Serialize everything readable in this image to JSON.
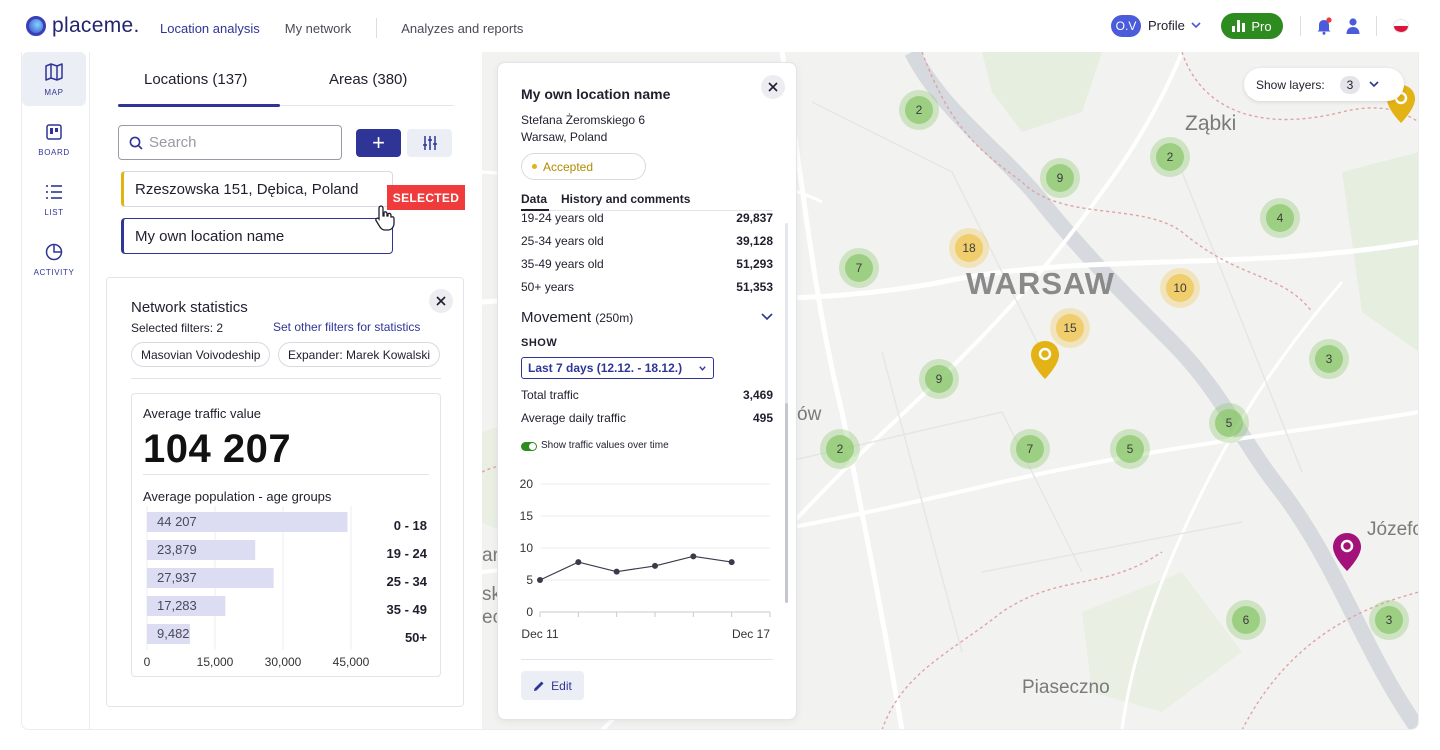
{
  "app": {
    "logo_text": "placeme.",
    "nav": [
      {
        "label": "Location analysis",
        "active": true
      },
      {
        "label": "My network",
        "active": false
      },
      {
        "label": "Analyzes and reports",
        "active": false
      }
    ],
    "profile": {
      "initials": "O.V",
      "label": "Profile"
    },
    "pro_label": "Pro",
    "colors": {
      "brand": "#2f3597",
      "pro": "#2e8b1f",
      "selected": "#ef3b3b",
      "accent_yellow": "#e3b214"
    }
  },
  "rail": {
    "items": [
      {
        "icon": "map-icon",
        "label": "MAP",
        "active": true
      },
      {
        "icon": "board-icon",
        "label": "BOARD",
        "active": false
      },
      {
        "icon": "list-icon",
        "label": "LIST",
        "active": false
      },
      {
        "icon": "activity-icon",
        "label": "ACTIVITY",
        "active": false
      }
    ]
  },
  "sidebar": {
    "tabs": [
      {
        "label": "Locations (137)",
        "active": true
      },
      {
        "label": "Areas (380)",
        "active": false
      }
    ],
    "search_placeholder": "Search",
    "add_label": "+",
    "locations": [
      {
        "label": "Rzeszowska 151, Dębica, Poland"
      },
      {
        "label": "My own location name"
      }
    ],
    "selected_tag": "SELECTED"
  },
  "stats": {
    "title": "Network statistics",
    "selected_filters": "Selected filters: 2",
    "set_filters_link": "Set other filters for statistics",
    "chips": [
      "Masovian Voivodeship",
      "Expander: Marek Kowalski"
    ],
    "avg_traffic_label": "Average traffic value",
    "avg_traffic_value": "104 207",
    "age_title": "Average population - age groups"
  },
  "chart_data": [
    {
      "type": "bar",
      "orientation": "horizontal",
      "title": "Average population - age groups",
      "categories": [
        "0 - 18",
        "19 - 24",
        "25 - 34",
        "35 - 49",
        "50+"
      ],
      "values": [
        44207,
        23879,
        27937,
        17283,
        9482
      ],
      "value_labels": [
        "44 207",
        "23,879",
        "27,937",
        "17,283",
        "9,482"
      ],
      "x_ticks": [
        "0",
        "15,000",
        "30,000",
        "45,000"
      ],
      "xlim": [
        0,
        45000
      ],
      "bar_color": "#dcdcf3",
      "grid": true
    },
    {
      "type": "line",
      "title": "",
      "x": [
        "Dec 11",
        "Dec 12",
        "Dec 13",
        "Dec 14",
        "Dec 15",
        "Dec 16",
        "Dec 17"
      ],
      "x_tick_labels": [
        "Dec 11",
        "Dec 17"
      ],
      "values": [
        5,
        7.8,
        6.3,
        7.2,
        8.7,
        7.8,
        null
      ],
      "y_ticks": [
        "20",
        "15",
        "10",
        "5",
        "0"
      ],
      "ylim": [
        0,
        20
      ],
      "line_color": "#3a3a4a",
      "grid": true
    }
  ],
  "map": {
    "layers_label": "Show layers:",
    "layers_count": "3",
    "place_labels": [
      "Ząbki",
      "WARSAW",
      "Piaseczno",
      "Józefo",
      "ów",
      "sk",
      "ec",
      "ar"
    ],
    "clusters": [
      {
        "count": "2",
        "color": "green"
      },
      {
        "count": "2",
        "color": "green"
      },
      {
        "count": "9",
        "color": "green"
      },
      {
        "count": "4",
        "color": "green"
      },
      {
        "count": "18",
        "color": "yellow"
      },
      {
        "count": "7",
        "color": "green"
      },
      {
        "count": "10",
        "color": "yellow"
      },
      {
        "count": "15",
        "color": "yellow"
      },
      {
        "count": "3",
        "color": "green"
      },
      {
        "count": "9",
        "color": "green"
      },
      {
        "count": "5",
        "color": "green"
      },
      {
        "count": "2",
        "color": "green"
      },
      {
        "count": "7",
        "color": "green"
      },
      {
        "count": "5",
        "color": "green"
      },
      {
        "count": "6",
        "color": "green"
      },
      {
        "count": "3",
        "color": "green"
      }
    ],
    "pins": [
      {
        "color": "#e3b214"
      },
      {
        "color": "#e3b214"
      },
      {
        "color": "#a3127a"
      }
    ]
  },
  "detail": {
    "title": "My own location name",
    "address_line1": "Stefana Żeromskiego 6",
    "address_line2": "Warsaw, Poland",
    "status": "Accepted",
    "tabs": [
      "Data",
      "History and comments"
    ],
    "age_rows": [
      {
        "label": "19-24 years old",
        "value": "29,837"
      },
      {
        "label": "25-34 years old",
        "value": "39,128"
      },
      {
        "label": "35-49 years old",
        "value": "51,293"
      },
      {
        "label": "50+ years",
        "value": "51,353"
      }
    ],
    "movement_title": "Movement",
    "movement_sub": "(250m)",
    "show_label": "SHOW",
    "period": "Last 7 days (12.12. - 18.12.)",
    "traffic_rows": [
      {
        "label": "Total traffic",
        "value": "3,469"
      },
      {
        "label": "Average daily traffic",
        "value": "495"
      }
    ],
    "toggle_label": "Show traffic values over time",
    "edit_label": "Edit"
  }
}
